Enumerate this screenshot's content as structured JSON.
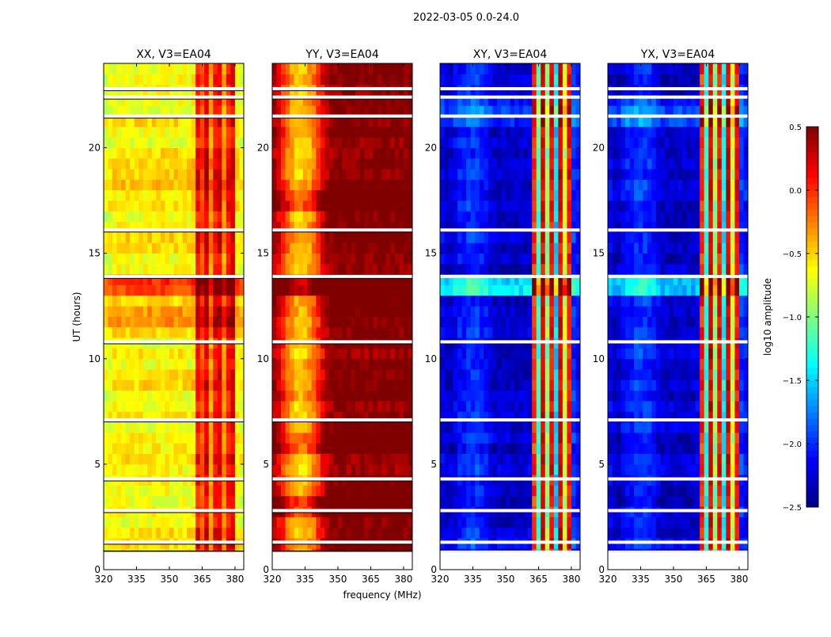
{
  "chart_data": {
    "type": "heatmap",
    "suptitle": "2022-03-05 0.0-24.0",
    "xlabel": "frequency (MHz)",
    "ylabel": "UT (hours)",
    "xlim": [
      320,
      384
    ],
    "ylim": [
      0,
      24
    ],
    "xticks": [
      "320",
      "335",
      "350",
      "365",
      "380"
    ],
    "xtick_values": [
      320,
      335,
      350,
      365,
      380
    ],
    "yticks": [
      "0",
      "5",
      "10",
      "15",
      "20"
    ],
    "ytick_values": [
      0,
      5,
      10,
      15,
      20
    ],
    "time_bin_hours": 0.5,
    "freq_bin_mhz": 2,
    "flagged_time_ranges": [
      [
        0,
        0.85
      ]
    ],
    "flagged_time_lines": [
      1.3,
      2.8,
      4.3,
      7.1,
      10.8,
      13.9,
      16.1,
      21.5,
      22.4,
      22.8
    ],
    "colorbar": {
      "label": "log10 amplitude",
      "colormap": "jet",
      "vmin": -2.5,
      "vmax": 0.5,
      "ticks": [
        "0.5",
        "0.0",
        "−0.5",
        "−1.0",
        "−1.5",
        "−2.0",
        "−2.5"
      ],
      "tick_values": [
        0.5,
        0.0,
        -0.5,
        -1.0,
        -1.5,
        -2.0,
        -2.5
      ]
    },
    "panels": [
      {
        "title": "XX, V3=EA04",
        "spectrum": [
          -0.7,
          -0.65,
          -0.6,
          -0.6,
          -0.6,
          -0.6,
          -0.6,
          -0.6,
          -0.6,
          -0.6,
          -0.6,
          -0.6,
          -0.6,
          -0.6,
          -0.6,
          -0.6,
          -0.6,
          -0.6,
          -0.6,
          -0.6,
          -0.55,
          0.1,
          -0.1,
          0.2,
          -0.3,
          0.1,
          0.2,
          -0.3,
          0.1,
          0.2,
          -0.6,
          -0.65
        ],
        "row_offsets": {
          "23": 0.25,
          "24": 0.25,
          "26": 0.6,
          "27": 0.6,
          "36": 0.1,
          "37": 0.1
        }
      },
      {
        "title": "YY, V3=EA04",
        "spectrum": [
          0.35,
          0.2,
          0.0,
          -0.2,
          -0.35,
          -0.45,
          -0.5,
          -0.45,
          -0.35,
          -0.2,
          0.0,
          0.2,
          0.35,
          0.45,
          0.5,
          0.5,
          0.5,
          0.5,
          0.5,
          0.5,
          0.5,
          0.5,
          0.5,
          0.5,
          0.5,
          0.5,
          0.5,
          0.5,
          0.5,
          0.5,
          0.5,
          0.5
        ],
        "row_offsets": {
          "5": 0.4,
          "6": 0.4,
          "11": 0.3,
          "12": 0.2,
          "26": 0.8,
          "27": 0.8,
          "34": 0.3,
          "35": 0.3
        }
      },
      {
        "title": "XY, V3=EA04",
        "spectrum": [
          -2.2,
          -2.3,
          -2.3,
          -2.2,
          -2.1,
          -2.1,
          -2.0,
          -2.0,
          -2.0,
          -2.05,
          -2.1,
          -2.2,
          -2.3,
          -2.3,
          -2.3,
          -2.3,
          -2.3,
          -2.3,
          -2.3,
          -2.3,
          -2.25,
          0.0,
          -1.2,
          0.2,
          -1.0,
          0.1,
          -1.5,
          0.2,
          -0.8,
          0.1,
          -2.0,
          -2.1
        ],
        "row_offsets": {
          "2": 0.2,
          "26": 0.8,
          "27": 0.7,
          "42": 0.3,
          "43": 0.3,
          "44": 0.2
        }
      },
      {
        "title": "YX, V3=EA04",
        "spectrum": [
          -2.2,
          -2.3,
          -2.3,
          -2.2,
          -2.1,
          -2.1,
          -2.0,
          -2.0,
          -2.0,
          -2.05,
          -2.1,
          -2.2,
          -2.3,
          -2.3,
          -2.3,
          -2.3,
          -2.3,
          -2.3,
          -2.3,
          -2.3,
          -2.25,
          0.0,
          -1.3,
          0.2,
          -1.0,
          0.1,
          -1.4,
          0.2,
          -0.8,
          0.1,
          -2.0,
          -2.1
        ],
        "row_offsets": {
          "2": 0.2,
          "26": 0.8,
          "27": 0.7,
          "42": 0.3,
          "43": 0.3,
          "44": 0.2
        }
      }
    ]
  }
}
